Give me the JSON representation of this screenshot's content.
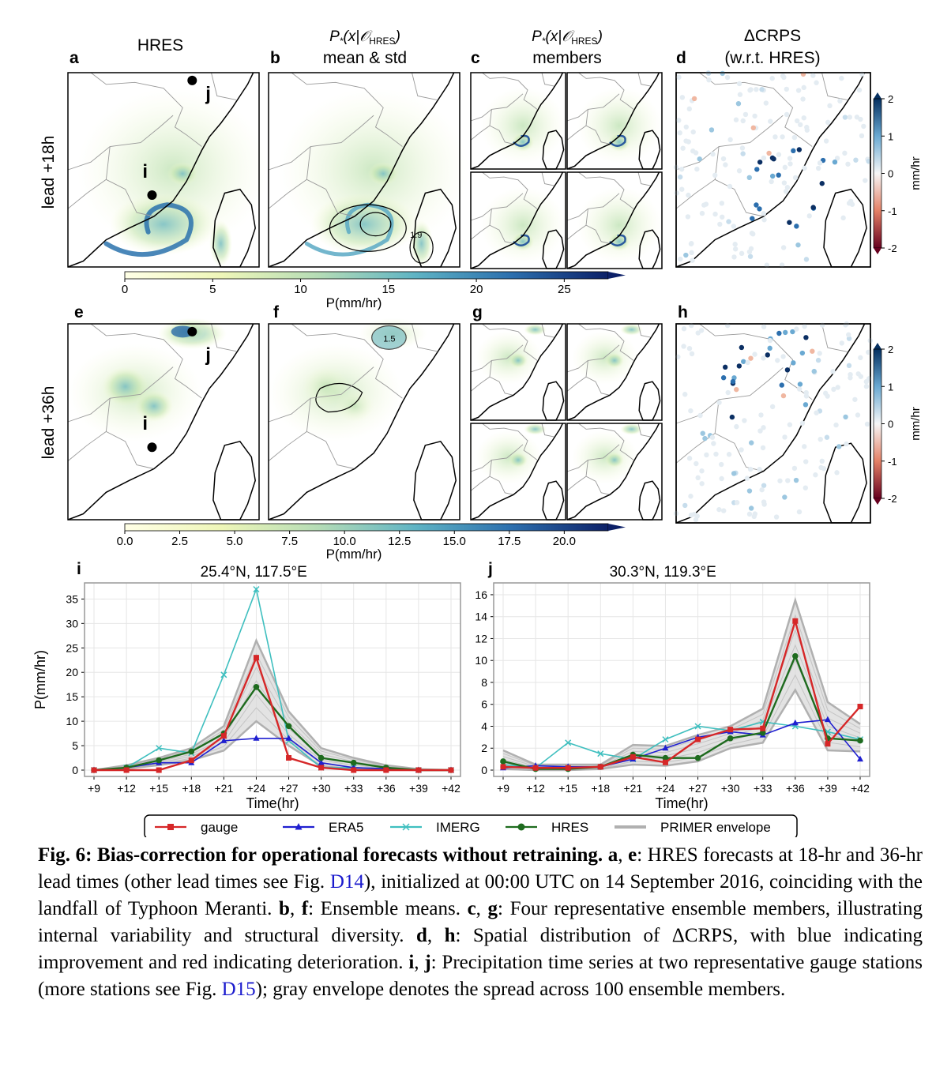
{
  "headers": {
    "a": "HRES",
    "b1": "P*(x|O_HRES)",
    "b2": "mean & std",
    "c1": "P*(x|O_HRES)",
    "c2": "members",
    "d1": "ΔCRPS",
    "d2": "(w.r.t. HRES)"
  },
  "panel_letters": [
    "a",
    "b",
    "c",
    "d",
    "e",
    "f",
    "g",
    "h",
    "i",
    "j"
  ],
  "row_labels": [
    "lead +18h",
    "lead +36h"
  ],
  "station_labels": [
    "i",
    "j"
  ],
  "map_annotations": {
    "b_contour": "1.9",
    "f_contour": "1.5"
  },
  "colorbar1": {
    "ticks": [
      "0",
      "5",
      "10",
      "15",
      "20",
      "25"
    ],
    "label": "P(mm/hr)"
  },
  "colorbar2": {
    "ticks": [
      "0.0",
      "2.5",
      "5.0",
      "7.5",
      "10.0",
      "12.5",
      "15.0",
      "17.5",
      "20.0"
    ],
    "label": "P(mm/hr)"
  },
  "crps_colorbar": {
    "ticks": [
      "2",
      "1",
      "0",
      "-1",
      "-2"
    ],
    "label": "mm/hr"
  },
  "chart_data": [
    {
      "type": "line",
      "panel": "i",
      "title": "25.4°N, 117.5°E",
      "xlabel": "Time(hr)",
      "ylabel": "P(mm/hr)",
      "x": [
        "+9",
        "+12",
        "+15",
        "+18",
        "+21",
        "+24",
        "+27",
        "+30",
        "+33",
        "+36",
        "+39",
        "+42"
      ],
      "ylim": [
        0,
        37
      ],
      "yticks": [
        "0",
        "5",
        "10",
        "15",
        "20",
        "25",
        "30",
        "35"
      ],
      "series": [
        {
          "name": "gauge",
          "color": "#d62728",
          "values": [
            0,
            0,
            0,
            2,
            7,
            23,
            2.5,
            0.5,
            0,
            0,
            0,
            0
          ]
        },
        {
          "name": "ERA5",
          "color": "#1f1fd0",
          "values": [
            0,
            0.5,
            1.5,
            1.5,
            6,
            6.5,
            6.5,
            1.5,
            0.5,
            0.3,
            0,
            0
          ]
        },
        {
          "name": "IMERG",
          "color": "#3fbfbf",
          "values": [
            0,
            0.5,
            4.5,
            3.5,
            19.5,
            37,
            6,
            0.5,
            0.5,
            0.3,
            0,
            0
          ]
        },
        {
          "name": "HRES",
          "color": "#1e6b1e",
          "values": [
            0,
            0.5,
            2,
            3.8,
            7.5,
            17,
            9,
            2.5,
            1.5,
            0.5,
            0,
            0
          ]
        }
      ],
      "envelope": {
        "name": "PRIMER envelope",
        "upper": [
          0,
          1,
          2.5,
          4.5,
          9,
          26.5,
          12,
          4.5,
          2.5,
          1,
          0.2,
          0
        ],
        "lower": [
          0,
          0.3,
          1,
          2,
          4,
          10,
          5,
          0.8,
          0.2,
          0.1,
          0,
          0
        ]
      }
    },
    {
      "type": "line",
      "panel": "j",
      "title": "30.3°N, 119.3°E",
      "xlabel": "Time(hr)",
      "ylabel": "",
      "x": [
        "+9",
        "+12",
        "+15",
        "+18",
        "+21",
        "+24",
        "+27",
        "+30",
        "+33",
        "+36",
        "+39",
        "+42"
      ],
      "ylim": [
        0,
        16.5
      ],
      "yticks": [
        "0",
        "2",
        "4",
        "6",
        "8",
        "10",
        "12",
        "14",
        "16"
      ],
      "series": [
        {
          "name": "gauge",
          "color": "#d62728",
          "values": [
            0.3,
            0.2,
            0.2,
            0.3,
            1.2,
            0.7,
            2.8,
            3.7,
            3.8,
            13.6,
            2.4,
            5.8
          ]
        },
        {
          "name": "ERA5",
          "color": "#1f1fd0",
          "values": [
            0.2,
            0.4,
            0.3,
            0.3,
            1,
            2,
            3,
            3.5,
            3.2,
            4.3,
            4.6,
            1
          ]
        },
        {
          "name": "IMERG",
          "color": "#3fbfbf",
          "values": [
            0.5,
            0.2,
            2.5,
            1.5,
            1,
            2.8,
            4,
            3.6,
            4.4,
            4,
            3.5,
            2.8
          ]
        },
        {
          "name": "HRES",
          "color": "#1e6b1e",
          "values": [
            0.8,
            0.1,
            0.1,
            0.3,
            1.4,
            1.1,
            1.1,
            2.9,
            3.4,
            10.4,
            2.9,
            2.7
          ]
        }
      ],
      "envelope": {
        "name": "PRIMER envelope",
        "upper": [
          1.8,
          0.5,
          0.5,
          0.5,
          2.3,
          2.2,
          3.2,
          4,
          5.6,
          15.5,
          6.2,
          4.2
        ],
        "lower": [
          0.1,
          0,
          0,
          0.1,
          0.5,
          0.4,
          0.8,
          2,
          2.5,
          7.3,
          1.8,
          1.7
        ]
      }
    }
  ],
  "legend": [
    "gauge",
    "ERA5",
    "IMERG",
    "HRES",
    "PRIMER envelope"
  ],
  "caption": {
    "fig": "Fig. 6",
    "title": "Bias-correction for operational forecasts without retraining.",
    "p1": "a",
    "p1b": "e",
    "t1": ": HRES forecasts at 18-hr and 36-hr lead times (other lead times see Fig. ",
    "link1": "D14",
    "t2": "), initialized at 00:00 UTC on 14 September 2016, coinciding with the landfall of Typhoon Meranti. ",
    "p2": "b",
    "p2b": "f",
    "t3": ": Ensemble means. ",
    "p3": "c",
    "p3b": "g",
    "t4": ": Four representative ensemble members, illustrating internal variability and structural diversity. ",
    "p4": "d",
    "p4b": "h",
    "t5": ": Spatial distribution of ΔCRPS, with blue indicating improvement and red indicating deterioration. ",
    "p5": "i",
    "p5b": "j",
    "t6": ": Precipitation time series at two representative gauge stations (more stations see Fig. ",
    "link2": "D15",
    "t7": "); gray envelope denotes the spread across 100 ensemble members."
  }
}
